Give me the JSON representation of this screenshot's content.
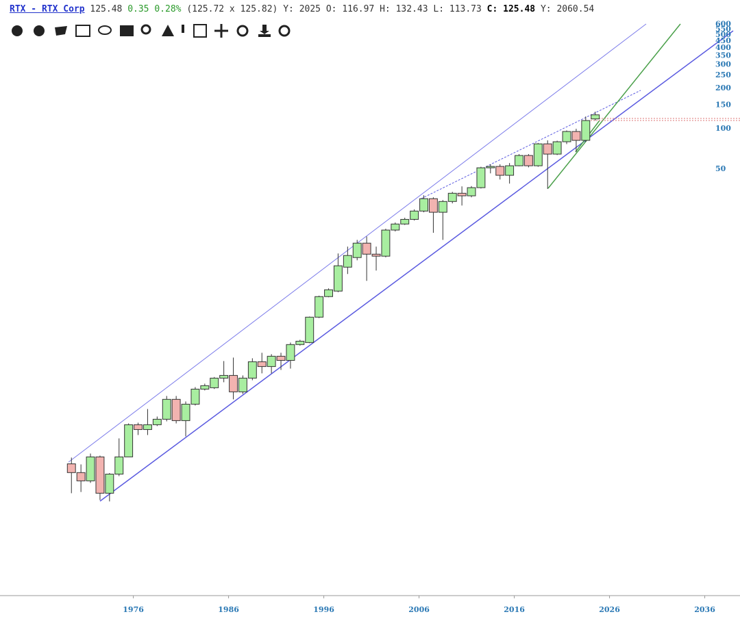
{
  "header": {
    "symbol": "RTX - RTX Corp",
    "bid_ask": "(125.72 x 125.82)",
    "change": 0.35,
    "change_pct": "0.28%",
    "year_label": "Y:",
    "open_label": "O:",
    "high_label": "H:",
    "low_label": "L:",
    "close_label": "C:",
    "extra_label": "Y:",
    "extra_value": 2060.54
  },
  "chart_data": {
    "type": "candlestick",
    "log_scale": true,
    "up_color": "#a8eea0",
    "down_color": "#f2b3b0",
    "x": [
      1970,
      1971,
      1972,
      1973,
      1974,
      1975,
      1976,
      1977,
      1978,
      1979,
      1980,
      1981,
      1982,
      1983,
      1984,
      1985,
      1986,
      1987,
      1988,
      1989,
      1990,
      1991,
      1992,
      1993,
      1994,
      1995,
      1996,
      1997,
      1998,
      1999,
      2000,
      2001,
      2002,
      2003,
      2004,
      2005,
      2006,
      2007,
      2008,
      2009,
      2010,
      2011,
      2012,
      2013,
      2014,
      2015,
      2016,
      2017,
      2018,
      2019,
      2020,
      2021,
      2022,
      2023,
      2024,
      2025
    ],
    "open": [
      0.316,
      0.272,
      0.236,
      0.356,
      0.191,
      0.265,
      0.356,
      0.618,
      0.569,
      0.618,
      0.679,
      0.955,
      0.663,
      0.879,
      1.138,
      1.165,
      1.374,
      1.439,
      1.086,
      1.374,
      1.82,
      1.676,
      2.0,
      1.862,
      2.443,
      2.529,
      3.908,
      5.56,
      6.11,
      9.21,
      10.86,
      13.9,
      11.51,
      11.12,
      17.4,
      19.3,
      20.9,
      24.1,
      29.8,
      23.6,
      28.4,
      32.7,
      31.3,
      36.0,
      50.6,
      51.8,
      44.5,
      52.4,
      62.5,
      52.4,
      76.3,
      64.0,
      79.1,
      94.3,
      81.0,
      116.97
    ],
    "high": [
      0.352,
      0.313,
      0.377,
      0.364,
      0.27,
      0.489,
      0.632,
      0.64,
      0.809,
      0.711,
      1.012,
      1.012,
      0.921,
      1.178,
      1.25,
      1.4,
      1.841,
      1.954,
      1.439,
      1.931,
      2.122,
      2.072,
      2.122,
      2.529,
      2.65,
      3.95,
      5.65,
      6.4,
      11.65,
      13.1,
      14.7,
      15.6,
      13.1,
      17.8,
      19.8,
      21.5,
      24.8,
      31.6,
      30.5,
      29.1,
      33.5,
      36.8,
      37.0,
      51.5,
      53.7,
      53.7,
      54.9,
      64.0,
      64.0,
      77.5,
      81.0,
      80.5,
      96.0,
      98.8,
      122,
      132.43
    ],
    "low": [
      0.191,
      0.195,
      0.228,
      0.17,
      0.166,
      0.256,
      0.356,
      0.518,
      0.518,
      0.604,
      0.655,
      0.632,
      0.506,
      0.859,
      1.112,
      1.14,
      1.28,
      0.955,
      1.047,
      1.325,
      1.491,
      1.491,
      1.581,
      1.618,
      2.4,
      2.5,
      3.85,
      5.5,
      6.0,
      8.19,
      10.36,
      7.28,
      8.69,
      10.9,
      17.0,
      19.0,
      20.5,
      23.6,
      16.6,
      14.7,
      27.5,
      26.5,
      30.5,
      35.5,
      46.0,
      41.4,
      38.6,
      52.0,
      51.0,
      51.5,
      35.2,
      63.0,
      76.0,
      66.3,
      79.1,
      113.73
    ],
    "close": [
      0.272,
      0.236,
      0.356,
      0.191,
      0.265,
      0.356,
      0.618,
      0.569,
      0.618,
      0.679,
      0.955,
      0.663,
      0.879,
      1.138,
      1.207,
      1.374,
      1.439,
      1.086,
      1.374,
      1.82,
      1.676,
      2.0,
      1.862,
      2.443,
      2.588,
      3.908,
      5.56,
      6.25,
      9.43,
      11.25,
      13.9,
      11.51,
      11.12,
      17.4,
      19.3,
      20.9,
      24.1,
      29.8,
      23.6,
      28.4,
      32.7,
      31.3,
      36.0,
      50.6,
      51.8,
      44.5,
      52.4,
      62.5,
      52.4,
      76.3,
      64.0,
      79.1,
      94.3,
      81.0,
      113.8,
      125.48
    ],
    "xlim": [
      1962,
      2039.7
    ],
    "xticks": [
      1976,
      1986,
      1996,
      2006,
      2016,
      2026,
      2036
    ],
    "ylim": [
      0.033,
      632
    ],
    "yticks": [
      50,
      100,
      150,
      200,
      250,
      300,
      350,
      400,
      450,
      500,
      550,
      600
    ]
  }
}
